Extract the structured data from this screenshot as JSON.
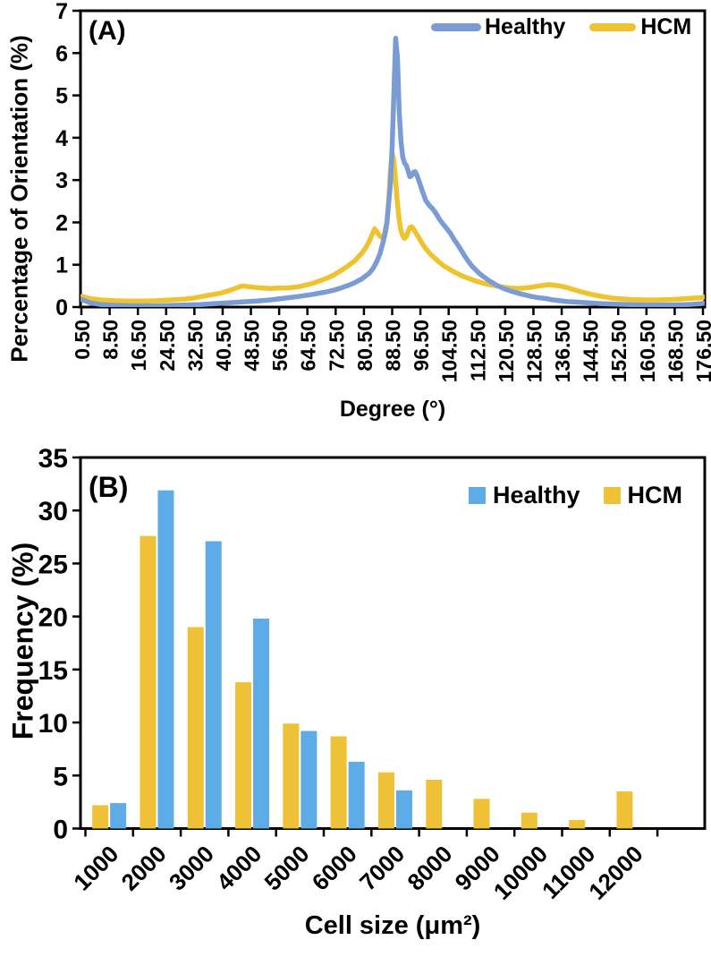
{
  "figure": {
    "panel_a": {
      "tag": "(A)"
    },
    "panel_b": {
      "tag": "(B)"
    }
  },
  "colors": {
    "line_blue": "#7B9CD3",
    "line_yellow": "#EFC32F",
    "bar_blue": "#5DACE8",
    "bar_yellow": "#EFC136",
    "axis": "#000000",
    "text": "#000000"
  },
  "chart_data": [
    {
      "type": "line",
      "panel": "A",
      "xlabel": "Degree (°)",
      "ylabel": "Percentage of Orientation (%)",
      "xlim": [
        0.5,
        176.5
      ],
      "ylim": [
        0,
        7
      ],
      "grid": false,
      "legend_position": "top-right-inside",
      "yticks": [
        0,
        1,
        2,
        3,
        4,
        5,
        6,
        7
      ],
      "xtick_labels": [
        "0.50",
        "8.50",
        "16.50",
        "24.50",
        "32.50",
        "40.50",
        "48.50",
        "56.50",
        "64.50",
        "72.50",
        "80.50",
        "88.50",
        "96.50",
        "104.50",
        "112.50",
        "120.50",
        "128.50",
        "136.50",
        "144.50",
        "152.50",
        "160.50",
        "168.50",
        "176.50"
      ],
      "xtick_values": [
        0.5,
        8.5,
        16.5,
        24.5,
        32.5,
        40.5,
        48.5,
        56.5,
        64.5,
        72.5,
        80.5,
        88.5,
        96.5,
        104.5,
        112.5,
        120.5,
        128.5,
        136.5,
        144.5,
        152.5,
        160.5,
        168.5,
        176.5
      ],
      "series": [
        {
          "name": "Healthy",
          "color": "#7B9CD3",
          "points": [
            [
              0.5,
              0.18
            ],
            [
              3,
              0.1
            ],
            [
              6,
              0.06
            ],
            [
              10,
              0.04
            ],
            [
              14,
              0.03
            ],
            [
              18,
              0.03
            ],
            [
              22,
              0.03
            ],
            [
              26,
              0.04
            ],
            [
              30,
              0.05
            ],
            [
              34,
              0.06
            ],
            [
              38,
              0.08
            ],
            [
              42,
              0.1
            ],
            [
              46,
              0.12
            ],
            [
              50,
              0.14
            ],
            [
              54,
              0.17
            ],
            [
              58,
              0.21
            ],
            [
              62,
              0.25
            ],
            [
              66,
              0.3
            ],
            [
              70,
              0.36
            ],
            [
              72,
              0.4
            ],
            [
              74,
              0.45
            ],
            [
              76,
              0.51
            ],
            [
              78,
              0.58
            ],
            [
              80,
              0.67
            ],
            [
              82,
              0.8
            ],
            [
              83,
              0.9
            ],
            [
              84,
              1.05
            ],
            [
              85,
              1.25
            ],
            [
              86,
              1.55
            ],
            [
              87,
              2.0
            ],
            [
              88,
              2.9
            ],
            [
              88.5,
              3.8
            ],
            [
              89,
              5.1
            ],
            [
              89.5,
              6.35
            ],
            [
              90,
              5.9
            ],
            [
              90.5,
              4.6
            ],
            [
              91,
              3.9
            ],
            [
              91.5,
              3.55
            ],
            [
              92,
              3.4
            ],
            [
              92.5,
              3.35
            ],
            [
              93,
              3.22
            ],
            [
              93.5,
              3.08
            ],
            [
              94,
              3.1
            ],
            [
              94.5,
              3.18
            ],
            [
              95,
              3.2
            ],
            [
              95.5,
              3.12
            ],
            [
              96,
              3.0
            ],
            [
              97,
              2.75
            ],
            [
              98,
              2.52
            ],
            [
              99,
              2.4
            ],
            [
              100,
              2.32
            ],
            [
              101,
              2.2
            ],
            [
              102,
              2.06
            ],
            [
              103,
              1.95
            ],
            [
              104,
              1.85
            ],
            [
              105,
              1.74
            ],
            [
              106,
              1.6
            ],
            [
              107,
              1.48
            ],
            [
              108,
              1.35
            ],
            [
              109,
              1.21
            ],
            [
              110,
              1.09
            ],
            [
              111,
              0.98
            ],
            [
              112,
              0.89
            ],
            [
              113,
              0.81
            ],
            [
              114,
              0.74
            ],
            [
              115,
              0.68
            ],
            [
              116,
              0.62
            ],
            [
              117,
              0.57
            ],
            [
              118,
              0.52
            ],
            [
              119,
              0.48
            ],
            [
              120,
              0.44
            ],
            [
              122,
              0.38
            ],
            [
              124,
              0.33
            ],
            [
              126,
              0.29
            ],
            [
              128,
              0.25
            ],
            [
              130,
              0.22
            ],
            [
              132,
              0.2
            ],
            [
              134,
              0.17
            ],
            [
              136,
              0.15
            ],
            [
              138,
              0.13
            ],
            [
              140,
              0.12
            ],
            [
              144,
              0.1
            ],
            [
              148,
              0.08
            ],
            [
              152,
              0.07
            ],
            [
              156,
              0.06
            ],
            [
              160,
              0.05
            ],
            [
              164,
              0.05
            ],
            [
              168,
              0.05
            ],
            [
              172,
              0.06
            ],
            [
              176,
              0.08
            ],
            [
              177.5,
              0.1
            ]
          ]
        },
        {
          "name": "HCM",
          "color": "#EFC32F",
          "points": [
            [
              0.5,
              0.25
            ],
            [
              3,
              0.2
            ],
            [
              6,
              0.17
            ],
            [
              10,
              0.15
            ],
            [
              14,
              0.14
            ],
            [
              18,
              0.14
            ],
            [
              22,
              0.15
            ],
            [
              26,
              0.17
            ],
            [
              30,
              0.19
            ],
            [
              32,
              0.21
            ],
            [
              34,
              0.24
            ],
            [
              36,
              0.27
            ],
            [
              38,
              0.3
            ],
            [
              40,
              0.33
            ],
            [
              42,
              0.38
            ],
            [
              44,
              0.44
            ],
            [
              46,
              0.5
            ],
            [
              48,
              0.48
            ],
            [
              50,
              0.46
            ],
            [
              52,
              0.45
            ],
            [
              54,
              0.44
            ],
            [
              56,
              0.45
            ],
            [
              58,
              0.45
            ],
            [
              60,
              0.46
            ],
            [
              62,
              0.48
            ],
            [
              64,
              0.52
            ],
            [
              66,
              0.56
            ],
            [
              68,
              0.62
            ],
            [
              70,
              0.68
            ],
            [
              72,
              0.76
            ],
            [
              74,
              0.86
            ],
            [
              76,
              0.97
            ],
            [
              78,
              1.1
            ],
            [
              80,
              1.28
            ],
            [
              81,
              1.4
            ],
            [
              82,
              1.55
            ],
            [
              83,
              1.75
            ],
            [
              83.5,
              1.85
            ],
            [
              84,
              1.8
            ],
            [
              85,
              1.68
            ],
            [
              86,
              1.62
            ],
            [
              86.5,
              1.7
            ],
            [
              87,
              1.95
            ],
            [
              87.5,
              2.5
            ],
            [
              88,
              3.2
            ],
            [
              88.5,
              3.65
            ],
            [
              89,
              3.45
            ],
            [
              89.5,
              2.95
            ],
            [
              90,
              2.45
            ],
            [
              90.5,
              2.05
            ],
            [
              91,
              1.8
            ],
            [
              91.5,
              1.68
            ],
            [
              92,
              1.62
            ],
            [
              92.5,
              1.66
            ],
            [
              93,
              1.78
            ],
            [
              93.5,
              1.88
            ],
            [
              94,
              1.9
            ],
            [
              94.5,
              1.85
            ],
            [
              95,
              1.78
            ],
            [
              96,
              1.65
            ],
            [
              97,
              1.5
            ],
            [
              98,
              1.38
            ],
            [
              99,
              1.28
            ],
            [
              100,
              1.2
            ],
            [
              101,
              1.12
            ],
            [
              102,
              1.05
            ],
            [
              103,
              0.98
            ],
            [
              104,
              0.93
            ],
            [
              105,
              0.88
            ],
            [
              106,
              0.83
            ],
            [
              107,
              0.79
            ],
            [
              108,
              0.75
            ],
            [
              109,
              0.71
            ],
            [
              110,
              0.68
            ],
            [
              112,
              0.62
            ],
            [
              114,
              0.57
            ],
            [
              116,
              0.53
            ],
            [
              118,
              0.5
            ],
            [
              120,
              0.47
            ],
            [
              122,
              0.45
            ],
            [
              124,
              0.44
            ],
            [
              126,
              0.45
            ],
            [
              128,
              0.47
            ],
            [
              130,
              0.5
            ],
            [
              132,
              0.52
            ],
            [
              133,
              0.53
            ],
            [
              134,
              0.52
            ],
            [
              136,
              0.5
            ],
            [
              138,
              0.46
            ],
            [
              140,
              0.41
            ],
            [
              142,
              0.36
            ],
            [
              144,
              0.32
            ],
            [
              146,
              0.28
            ],
            [
              148,
              0.25
            ],
            [
              150,
              0.22
            ],
            [
              152,
              0.2
            ],
            [
              156,
              0.18
            ],
            [
              160,
              0.17
            ],
            [
              164,
              0.17
            ],
            [
              168,
              0.18
            ],
            [
              172,
              0.2
            ],
            [
              176,
              0.22
            ],
            [
              177.5,
              0.25
            ]
          ]
        }
      ]
    },
    {
      "type": "bar",
      "panel": "B",
      "xlabel": "Cell size (μm²)",
      "ylabel": "Frequency (%)",
      "ylim": [
        0,
        35
      ],
      "grid": false,
      "legend_position": "top-right-inside",
      "yticks": [
        0,
        5,
        10,
        15,
        20,
        25,
        30,
        35
      ],
      "categories": [
        "1000",
        "2000",
        "3000",
        "4000",
        "5000",
        "6000",
        "7000",
        "8000",
        "9000",
        "10000",
        "11000",
        "12000"
      ],
      "bar_draw_order": [
        "HCM",
        "Healthy"
      ],
      "series": [
        {
          "name": "Healthy",
          "color": "#5DACE8",
          "values": [
            2.4,
            31.9,
            27.1,
            19.8,
            9.2,
            6.3,
            3.6,
            0,
            0,
            0,
            0,
            0
          ]
        },
        {
          "name": "HCM",
          "color": "#EFC136",
          "values": [
            2.2,
            27.6,
            19.0,
            13.8,
            9.9,
            8.7,
            5.3,
            4.6,
            2.8,
            1.5,
            0.8,
            3.5
          ]
        }
      ]
    }
  ]
}
